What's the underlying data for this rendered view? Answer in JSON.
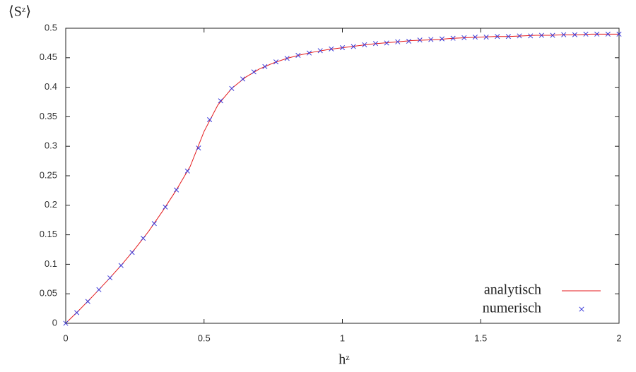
{
  "chart_data": {
    "type": "line",
    "xlabel": "hᶻ",
    "ylabel": "⟨Sᶻ⟩",
    "xlim": [
      0,
      2
    ],
    "ylim": [
      0,
      0.5
    ],
    "xticks": [
      0,
      0.5,
      1,
      1.5,
      2
    ],
    "yticks": [
      0,
      0.05,
      0.1,
      0.15,
      0.2,
      0.25,
      0.3,
      0.35,
      0.4,
      0.45,
      0.5
    ],
    "grid": false,
    "legend": "bottom-right",
    "series": [
      {
        "name": "analytisch",
        "color": "#e41a1c",
        "style": "line",
        "x": [
          0,
          0.05,
          0.1,
          0.15,
          0.2,
          0.25,
          0.3,
          0.35,
          0.4,
          0.45,
          0.5,
          0.55,
          0.6,
          0.65,
          0.7,
          0.75,
          0.8,
          0.85,
          0.9,
          0.95,
          1,
          1.05,
          1.1,
          1.15,
          1.2,
          1.25,
          1.3,
          1.35,
          1.4,
          1.45,
          1.5,
          1.55,
          1.6,
          1.65,
          1.7,
          1.75,
          1.8,
          1.85,
          1.9,
          1.95,
          2
        ],
        "values": [
          0,
          0.023,
          0.047,
          0.072,
          0.098,
          0.126,
          0.156,
          0.19,
          0.226,
          0.266,
          0.325,
          0.37,
          0.398,
          0.417,
          0.431,
          0.441,
          0.449,
          0.455,
          0.46,
          0.464,
          0.467,
          0.47,
          0.473,
          0.475,
          0.477,
          0.479,
          0.48,
          0.481,
          0.483,
          0.484,
          0.485,
          0.486,
          0.486,
          0.487,
          0.488,
          0.488,
          0.489,
          0.489,
          0.49,
          0.49,
          0.49
        ]
      },
      {
        "name": "numerisch",
        "color": "#3b3bd9",
        "style": "marker",
        "x": [
          0,
          0.04,
          0.08,
          0.12,
          0.16,
          0.2,
          0.24,
          0.28,
          0.32,
          0.36,
          0.4,
          0.44,
          0.48,
          0.52,
          0.56,
          0.6,
          0.64,
          0.68,
          0.72,
          0.76,
          0.8,
          0.84,
          0.88,
          0.92,
          0.96,
          1,
          1.04,
          1.08,
          1.12,
          1.16,
          1.2,
          1.24,
          1.28,
          1.32,
          1.36,
          1.4,
          1.44,
          1.48,
          1.52,
          1.56,
          1.6,
          1.64,
          1.68,
          1.72,
          1.76,
          1.8,
          1.84,
          1.88,
          1.92,
          1.96,
          2
        ],
        "values": [
          0,
          0.018,
          0.037,
          0.057,
          0.077,
          0.098,
          0.12,
          0.144,
          0.169,
          0.197,
          0.226,
          0.258,
          0.297,
          0.345,
          0.377,
          0.398,
          0.414,
          0.426,
          0.435,
          0.443,
          0.449,
          0.454,
          0.458,
          0.462,
          0.465,
          0.467,
          0.469,
          0.472,
          0.474,
          0.475,
          0.477,
          0.478,
          0.48,
          0.481,
          0.482,
          0.483,
          0.484,
          0.485,
          0.485,
          0.486,
          0.486,
          0.487,
          0.487,
          0.488,
          0.488,
          0.489,
          0.489,
          0.49,
          0.49,
          0.49,
          0.49
        ]
      }
    ]
  }
}
